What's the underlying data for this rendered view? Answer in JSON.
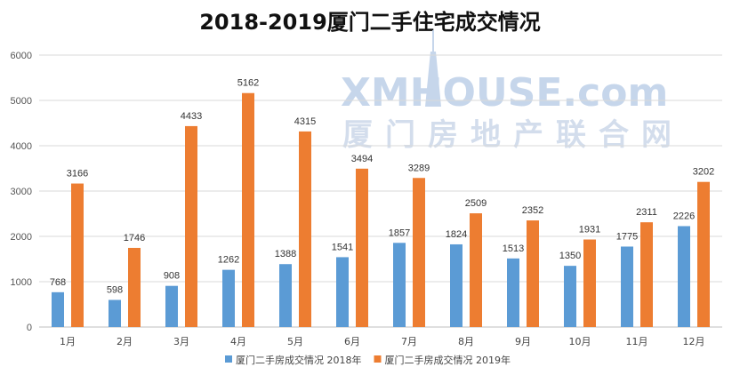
{
  "colors": {
    "series_2018": "#5b9bd5",
    "series_2019": "#ed7d31",
    "grid": "#d9d9d9",
    "axis": "#bfbfbf",
    "watermark": "#c4d4ea"
  },
  "watermark": {
    "text_en": "XMHOUSE.com",
    "text_cn": "厦门房地产联合网"
  },
  "chart_data": {
    "type": "bar",
    "title": "2018-2019厦门二手住宅成交情况",
    "categories": [
      "1月",
      "2月",
      "3月",
      "4月",
      "5月",
      "6月",
      "7月",
      "8月",
      "9月",
      "10月",
      "11月",
      "12月"
    ],
    "series": [
      {
        "name": "厦门二手房成交情况 2018年",
        "color": "#5b9bd5",
        "values": [
          768,
          598,
          908,
          1262,
          1388,
          1541,
          1857,
          1824,
          1513,
          1350,
          1775,
          2226
        ]
      },
      {
        "name": "厦门二手房成交情况 2019年",
        "color": "#ed7d31",
        "values": [
          3166,
          1746,
          4433,
          5162,
          4315,
          3494,
          3289,
          2509,
          2352,
          1931,
          2311,
          3202
        ]
      }
    ],
    "ylim": [
      0,
      6000
    ],
    "yticks": [
      0,
      1000,
      2000,
      3000,
      4000,
      5000,
      6000
    ],
    "grid": true,
    "legend": "bottom-center",
    "xlabel": "",
    "ylabel": ""
  }
}
